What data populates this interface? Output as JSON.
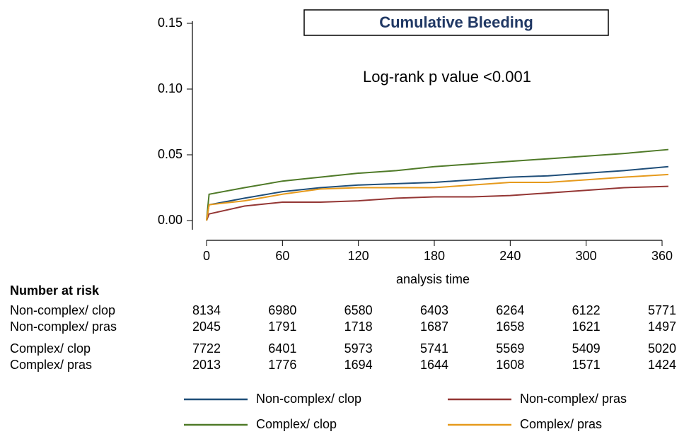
{
  "chart_data": {
    "type": "line",
    "title": "Cumulative Bleeding",
    "annotation": "Log-rank p value <0.001",
    "x_label": "analysis time",
    "x": [
      0,
      2,
      30,
      60,
      90,
      120,
      150,
      180,
      210,
      240,
      270,
      300,
      330,
      365
    ],
    "xlim": [
      0,
      360
    ],
    "xticks": [
      0,
      60,
      120,
      180,
      240,
      300,
      360
    ],
    "ylim": [
      0,
      0.15
    ],
    "yticks": [
      {
        "value": 0,
        "label": "0.00"
      },
      {
        "value": 0.05,
        "label": "0.05"
      },
      {
        "value": 0.1,
        "label": "0.10"
      },
      {
        "value": 0.15,
        "label": "0.15"
      }
    ],
    "series": [
      {
        "name": "Non-complex/ clop",
        "color": "#1f4e79",
        "values": [
          0,
          0.012,
          0.017,
          0.022,
          0.025,
          0.027,
          0.028,
          0.029,
          0.031,
          0.033,
          0.034,
          0.036,
          0.038,
          0.041
        ]
      },
      {
        "name": "Non-complex/ pras",
        "color": "#943634",
        "values": [
          0,
          0.005,
          0.011,
          0.014,
          0.014,
          0.015,
          0.017,
          0.018,
          0.018,
          0.019,
          0.021,
          0.023,
          0.025,
          0.026
        ]
      },
      {
        "name": "Complex/ clop",
        "color": "#4f7a28",
        "values": [
          0,
          0.02,
          0.025,
          0.03,
          0.033,
          0.036,
          0.038,
          0.041,
          0.043,
          0.045,
          0.047,
          0.049,
          0.051,
          0.054
        ]
      },
      {
        "name": "Complex/ pras",
        "color": "#e69a1c",
        "values": [
          0,
          0.012,
          0.015,
          0.02,
          0.024,
          0.025,
          0.025,
          0.025,
          0.027,
          0.029,
          0.029,
          0.031,
          0.033,
          0.035
        ]
      }
    ],
    "risk_table": {
      "title": "Number at risk",
      "rows": [
        [
          8134,
          6980,
          6580,
          6403,
          6264,
          6122,
          5771
        ],
        [
          2045,
          1791,
          1718,
          1687,
          1658,
          1621,
          1497
        ],
        [
          7722,
          6401,
          5973,
          5741,
          5569,
          5409,
          5020
        ],
        [
          2013,
          1776,
          1694,
          1644,
          1608,
          1571,
          1424
        ]
      ]
    }
  }
}
